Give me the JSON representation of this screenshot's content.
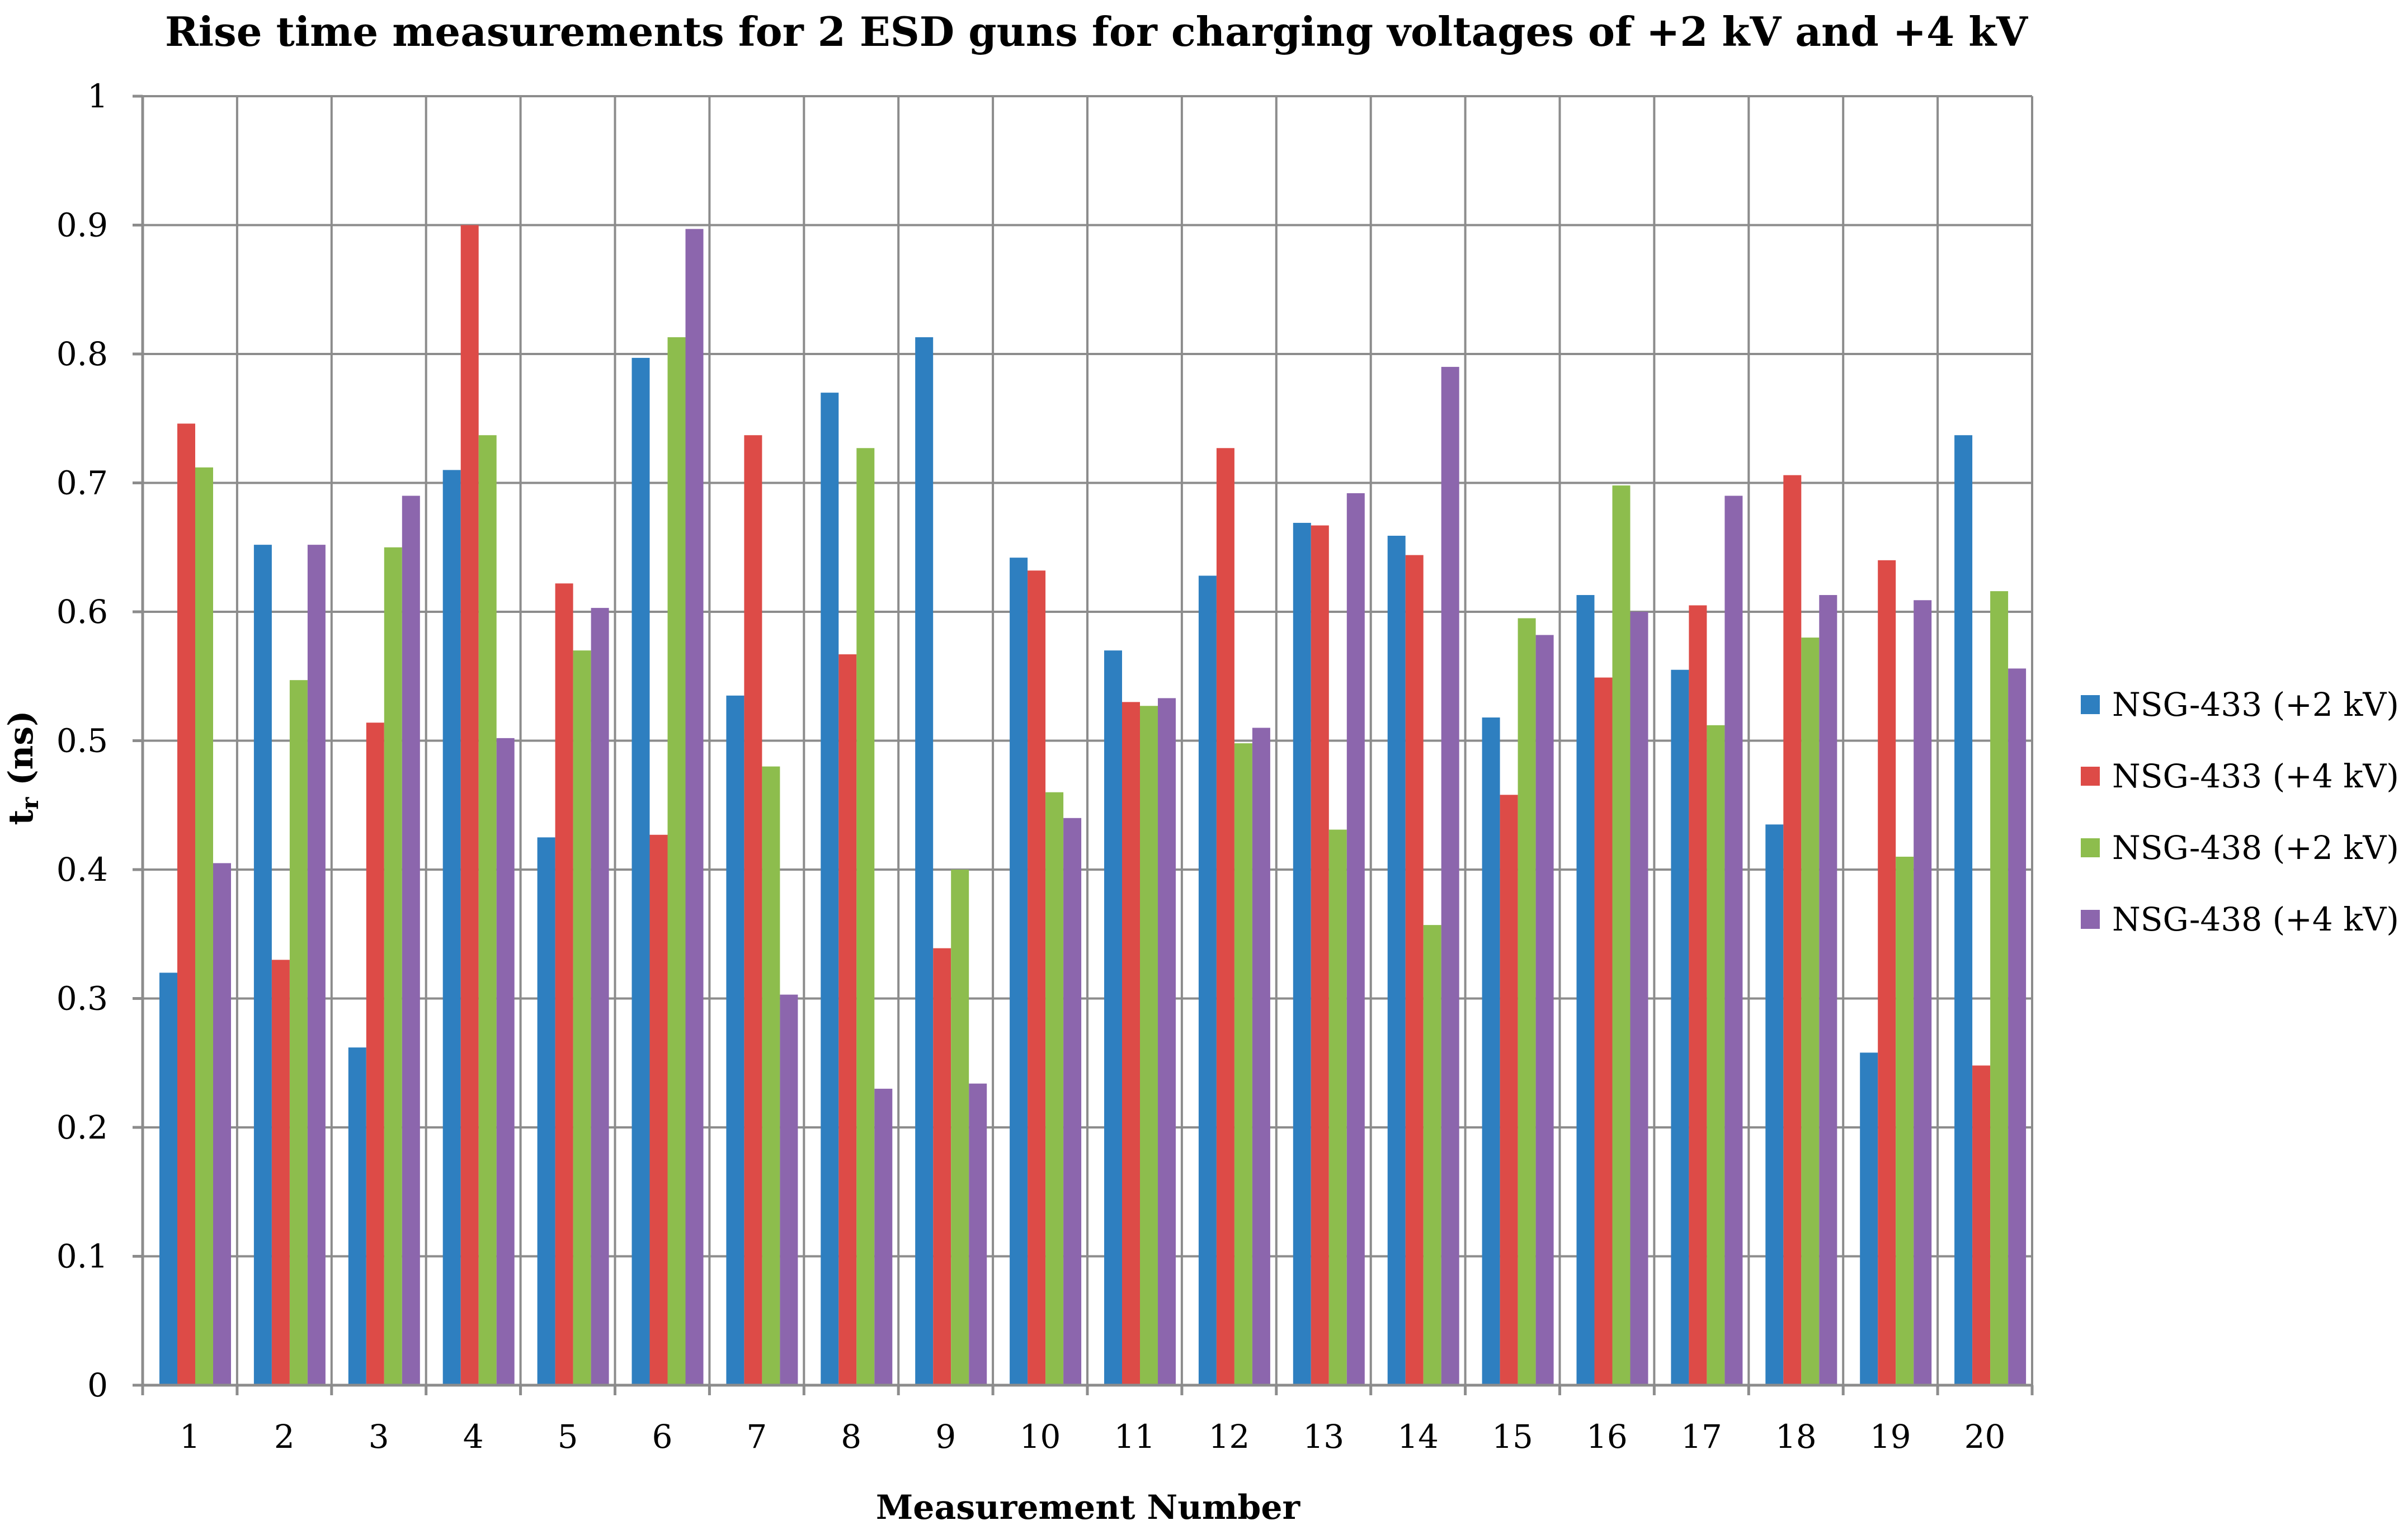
{
  "chart_data": {
    "type": "bar",
    "title": "Rise time measurements for 2 ESD guns for charging voltages of +2 kV and +4 kV",
    "xlabel": "Measurement Number",
    "ylabel_main": "t",
    "ylabel_sub": "r",
    "ylabel_unit": " (ns)",
    "ylim": [
      0,
      1
    ],
    "yticks": [
      "0",
      "0.1",
      "0.2",
      "0.3",
      "0.4",
      "0.5",
      "0.6",
      "0.7",
      "0.8",
      "0.9",
      "1"
    ],
    "ytick_values": [
      0,
      0.1,
      0.2,
      0.3,
      0.4,
      0.5,
      0.6,
      0.7,
      0.8,
      0.9,
      1.0
    ],
    "grid": true,
    "legend_position": "right",
    "categories": [
      "1",
      "2",
      "3",
      "4",
      "5",
      "6",
      "7",
      "8",
      "9",
      "10",
      "11",
      "12",
      "13",
      "14",
      "15",
      "16",
      "17",
      "18",
      "19",
      "20"
    ],
    "series": [
      {
        "name": "NSG-433 (+2 kV)",
        "color": "#2e7fc0",
        "values": [
          0.32,
          0.652,
          0.262,
          0.71,
          0.425,
          0.797,
          0.535,
          0.77,
          0.813,
          0.642,
          0.57,
          0.628,
          0.669,
          0.659,
          0.518,
          0.613,
          0.555,
          0.435,
          0.258,
          0.737
        ]
      },
      {
        "name": "NSG-433 (+4 kV)",
        "color": "#dd4b47",
        "values": [
          0.746,
          0.33,
          0.514,
          0.9,
          0.622,
          0.427,
          0.737,
          0.567,
          0.339,
          0.632,
          0.53,
          0.727,
          0.667,
          0.644,
          0.458,
          0.549,
          0.605,
          0.706,
          0.64,
          0.248
        ]
      },
      {
        "name": "NSG-438 (+2 kV)",
        "color": "#8dbd4d",
        "values": [
          0.712,
          0.547,
          0.65,
          0.737,
          0.57,
          0.813,
          0.48,
          0.727,
          0.4,
          0.46,
          0.527,
          0.498,
          0.431,
          0.357,
          0.595,
          0.698,
          0.512,
          0.58,
          0.41,
          0.616
        ]
      },
      {
        "name": "NSG-438 (+4 kV)",
        "color": "#8c66ad",
        "values": [
          0.405,
          0.652,
          0.69,
          0.502,
          0.603,
          0.897,
          0.303,
          0.23,
          0.234,
          0.44,
          0.533,
          0.51,
          0.692,
          0.79,
          0.582,
          0.6,
          0.69,
          0.613,
          0.609,
          0.556
        ]
      }
    ]
  }
}
